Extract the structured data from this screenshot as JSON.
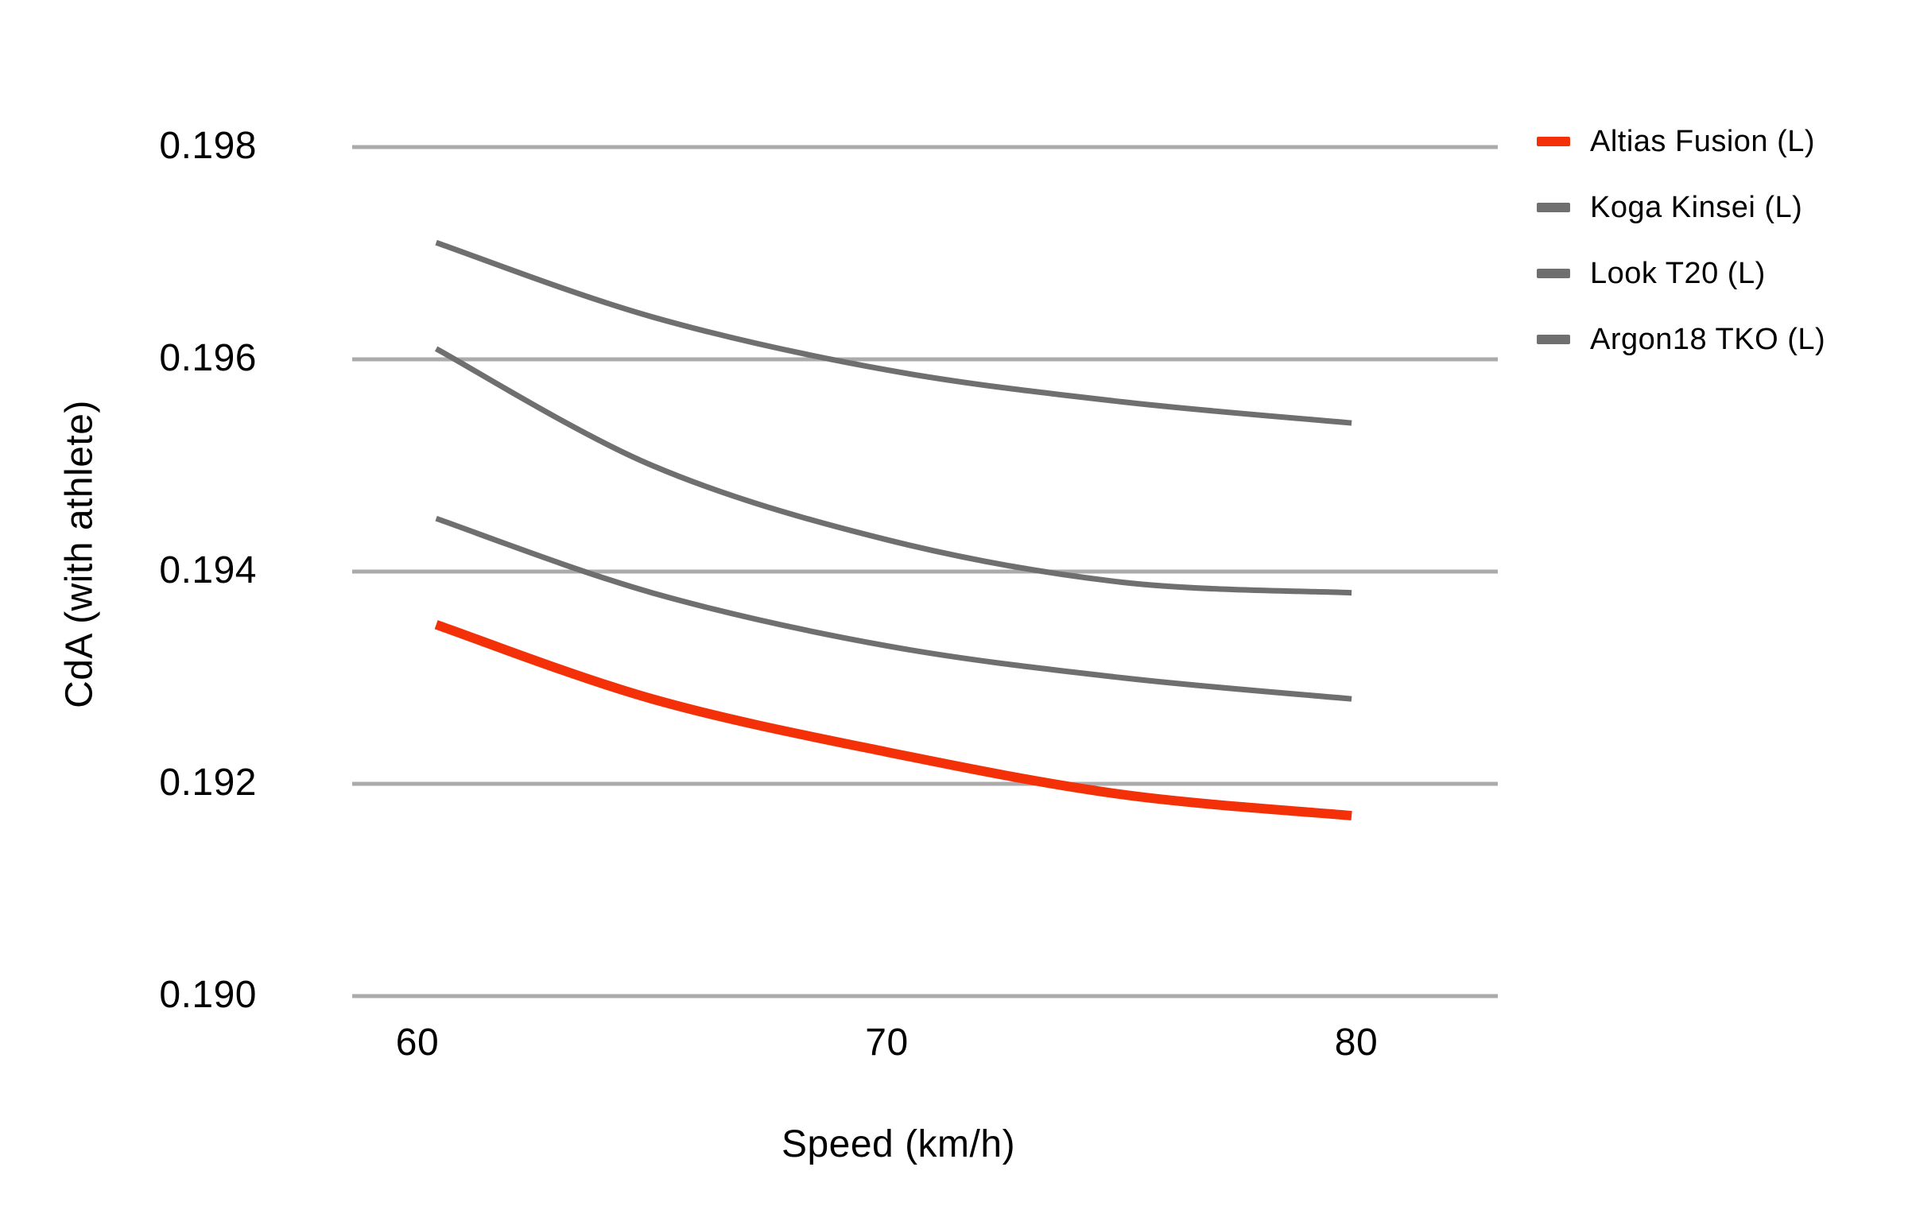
{
  "figure": {
    "background": "#ffffff",
    "text_color": "#000000"
  },
  "chart_data": {
    "type": "line",
    "title": "",
    "xlabel": "Speed (km/h)",
    "ylabel": "CdA (with athlete)",
    "x": [
      60.4,
      65,
      70,
      75,
      79.9
    ],
    "series": [
      {
        "name": "Altias Fusion (L)",
        "color": "#f43008",
        "line_width": 12,
        "emphasized": true,
        "values": [
          0.1935,
          0.1928,
          0.1923,
          0.1919,
          0.1917
        ]
      },
      {
        "name": "Koga Kinsei (L)",
        "color": "#6f6f6f",
        "line_width": 7,
        "emphasized": false,
        "values": [
          0.1945,
          0.1938,
          0.1933,
          0.193,
          0.1928
        ]
      },
      {
        "name": "Look T20 (L)",
        "color": "#6f6f6f",
        "line_width": 7,
        "emphasized": false,
        "values": [
          0.1961,
          0.195,
          0.1943,
          0.1939,
          0.1938
        ]
      },
      {
        "name": "Argon18 TKO (L)",
        "color": "#6f6f6f",
        "line_width": 7,
        "emphasized": false,
        "values": [
          0.1971,
          0.1964,
          0.1959,
          0.1956,
          0.1954
        ]
      }
    ],
    "x_ticks": [
      {
        "label": "60",
        "value": 60
      },
      {
        "label": "70",
        "value": 70
      },
      {
        "label": "80",
        "value": 80
      }
    ],
    "y_ticks": [
      {
        "label": "0.198",
        "value": 0.198
      },
      {
        "label": "0.196",
        "value": 0.196
      },
      {
        "label": "0.194",
        "value": 0.194
      },
      {
        "label": "0.192",
        "value": 0.192
      },
      {
        "label": "0.190",
        "value": 0.19
      }
    ],
    "xlim": [
      58.6,
      83.0
    ],
    "ylim": [
      0.1898,
      0.1994
    ],
    "grid": "horizontal-only",
    "gridline_color": "#ababab",
    "legend_position": "right"
  }
}
